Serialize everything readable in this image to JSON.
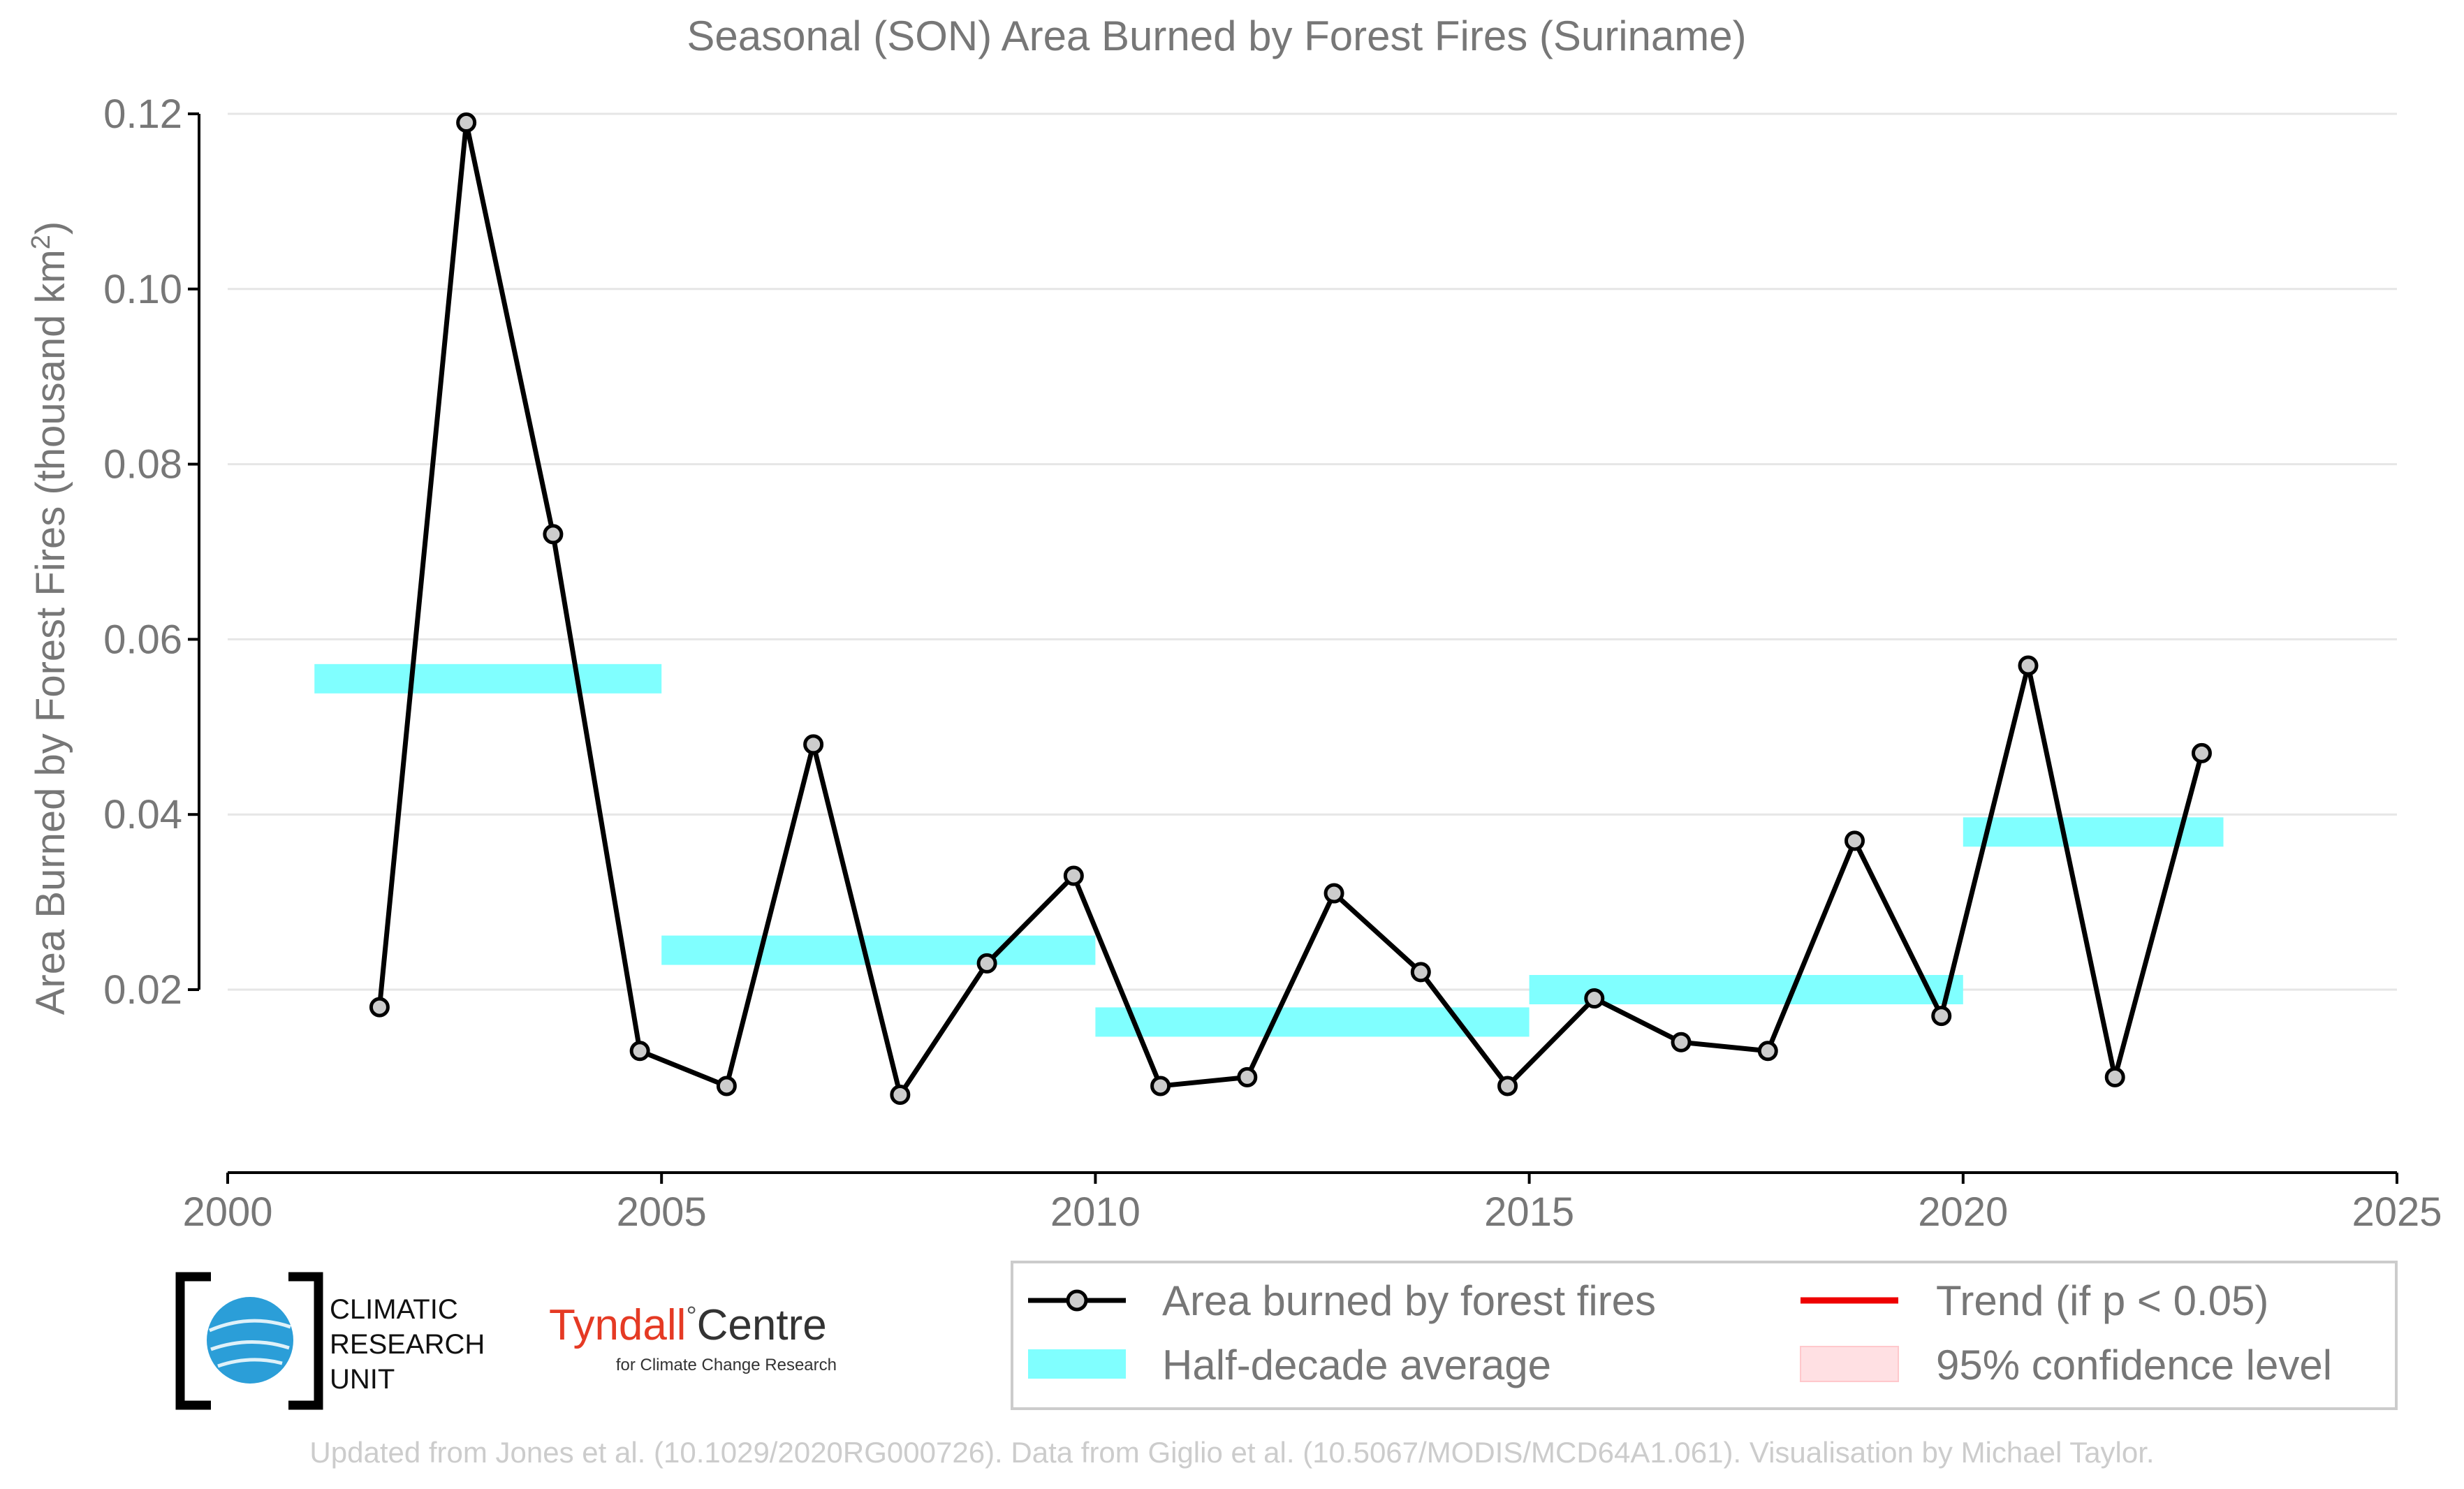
{
  "chart_data": {
    "type": "line",
    "title": "Seasonal (SON) Area Burned by Forest Fires (Suriname)",
    "ylabel_prefix": "Area Burned by Forest Fires (thousand km",
    "ylabel_sup": "2",
    "ylabel_suffix": ")",
    "xlabel": "",
    "xlim": [
      2000,
      2025
    ],
    "ylim": [
      0.0,
      0.12
    ],
    "xticks": [
      2000,
      2005,
      2010,
      2015,
      2020,
      2025
    ],
    "yticks": [
      "0.02",
      "0.04",
      "0.06",
      "0.08",
      "0.10",
      "0.12"
    ],
    "grid": true,
    "series": [
      {
        "name": "Area burned by forest fires",
        "x": [
          2001.75,
          2002.75,
          2003.75,
          2004.75,
          2005.75,
          2006.75,
          2007.75,
          2008.75,
          2009.75,
          2010.75,
          2011.75,
          2012.75,
          2013.75,
          2014.75,
          2015.75,
          2016.75,
          2017.75,
          2018.75,
          2019.75,
          2020.75,
          2021.75,
          2022.75
        ],
        "y": [
          0.018,
          0.119,
          0.072,
          0.013,
          0.009,
          0.048,
          0.008,
          0.023,
          0.033,
          0.009,
          0.01,
          0.031,
          0.022,
          0.009,
          0.019,
          0.014,
          0.013,
          0.037,
          0.017,
          0.057,
          0.01,
          0.047
        ],
        "color": "#000000"
      }
    ],
    "half_decade_average": {
      "name": "Half-decade average",
      "color": "#80ffff",
      "segments": [
        {
          "x0": 2001,
          "x1": 2005,
          "y": 0.0555
        },
        {
          "x0": 2005,
          "x1": 2010,
          "y": 0.0245
        },
        {
          "x0": 2010,
          "x1": 2015,
          "y": 0.0163
        },
        {
          "x0": 2015,
          "x1": 2020,
          "y": 0.02
        },
        {
          "x0": 2020,
          "x1": 2023,
          "y": 0.038
        }
      ]
    },
    "legend": {
      "placement": "bottom-right",
      "items": [
        {
          "label": "Area burned by forest fires",
          "kind": "line-marker",
          "color": "#000000"
        },
        {
          "label": "Trend (if p < 0.05)",
          "kind": "line",
          "color": "#ee0000"
        },
        {
          "label": "Half-decade average",
          "kind": "band",
          "color": "#80ffff"
        },
        {
          "label": "95% confidence level",
          "kind": "band",
          "color": "#ffe0e3"
        }
      ]
    }
  },
  "logos": {
    "cru_lines": [
      "CLIMATIC",
      "RESEARCH",
      "UNIT"
    ],
    "tyndall_main": "Tyndall",
    "tyndall_degree": "°",
    "tyndall_centre": "Centre",
    "tyndall_sub": "for Climate Change Research"
  },
  "footer": "Updated from Jones et al. (10.1029/2020RG000726). Data from Giglio et al. (10.5067/MODIS/MCD64A1.061). Visualisation by Michael Taylor."
}
